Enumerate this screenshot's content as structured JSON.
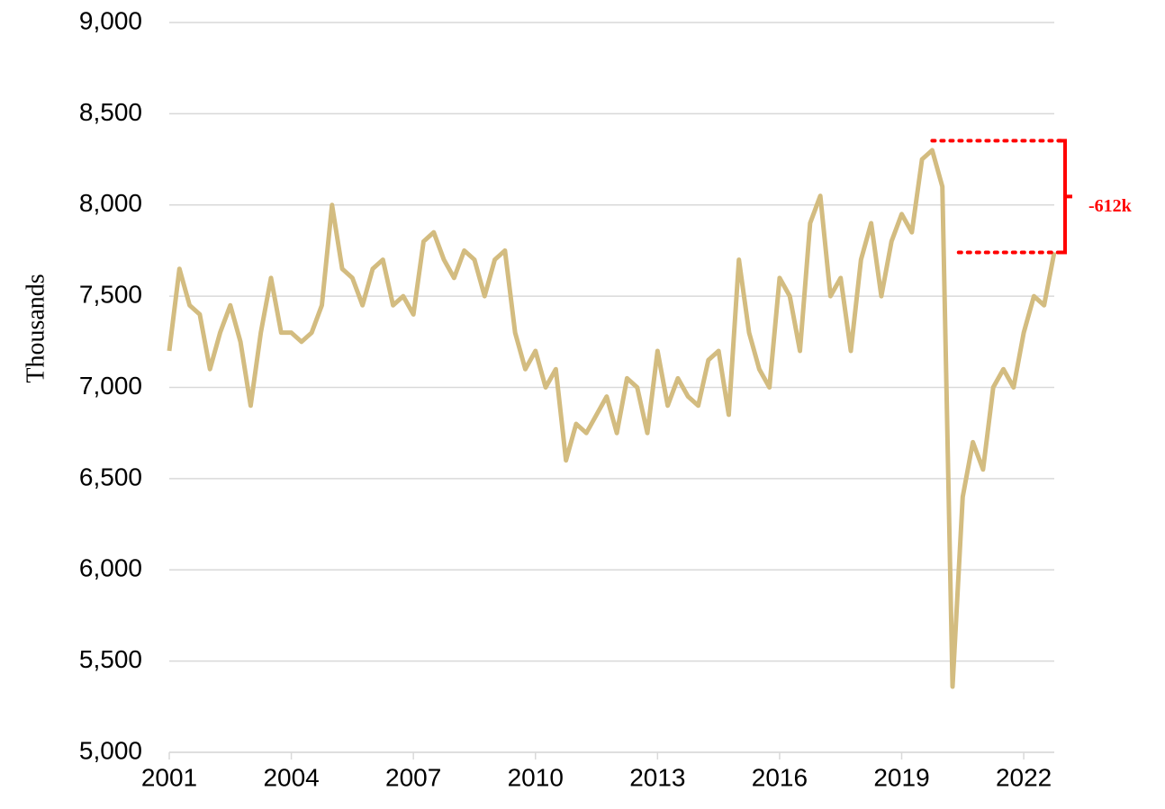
{
  "chart_data": {
    "type": "line",
    "y_label": "Thousands",
    "x": [
      2001,
      2001.25,
      2001.5,
      2001.75,
      2002,
      2002.25,
      2002.5,
      2002.75,
      2003,
      2003.25,
      2003.5,
      2003.75,
      2004,
      2004.25,
      2004.5,
      2004.75,
      2005,
      2005.25,
      2005.5,
      2005.75,
      2006,
      2006.25,
      2006.5,
      2006.75,
      2007,
      2007.25,
      2007.5,
      2007.75,
      2008,
      2008.25,
      2008.5,
      2008.75,
      2009,
      2009.25,
      2009.5,
      2009.75,
      2010,
      2010.25,
      2010.5,
      2010.75,
      2011,
      2011.25,
      2011.5,
      2011.75,
      2012,
      2012.25,
      2012.5,
      2012.75,
      2013,
      2013.25,
      2013.5,
      2013.75,
      2014,
      2014.25,
      2014.5,
      2014.75,
      2015,
      2015.25,
      2015.5,
      2015.75,
      2016,
      2016.25,
      2016.5,
      2016.75,
      2017,
      2017.25,
      2017.5,
      2017.75,
      2018,
      2018.25,
      2018.5,
      2018.75,
      2019,
      2019.25,
      2019.5,
      2019.75,
      2020,
      2020.25,
      2020.5,
      2020.75,
      2021,
      2021.25,
      2021.5,
      2021.75,
      2022,
      2022.25,
      2022.5,
      2022.75
    ],
    "series": [
      {
        "color": "#d3bc80",
        "values": [
          7200,
          7650,
          7450,
          7400,
          7100,
          7300,
          7450,
          7250,
          6900,
          7300,
          7600,
          7300,
          7300,
          7250,
          7300,
          7450,
          8000,
          7650,
          7600,
          7450,
          7650,
          7700,
          7450,
          7500,
          7400,
          7800,
          7850,
          7700,
          7600,
          7750,
          7700,
          7500,
          7700,
          7750,
          7300,
          7100,
          7200,
          7000,
          7100,
          6600,
          6800,
          6750,
          6850,
          6950,
          6750,
          7050,
          7000,
          6750,
          7200,
          6900,
          7050,
          6950,
          6900,
          7150,
          7200,
          6850,
          7700,
          7300,
          7100,
          7000,
          7600,
          7500,
          7200,
          7900,
          8050,
          7500,
          7600,
          7200,
          7700,
          7900,
          7500,
          7800,
          7950,
          7850,
          8250,
          8300,
          8100,
          5360,
          6400,
          6700,
          6550,
          7000,
          7100,
          7000,
          7300,
          7500,
          7450,
          7740
        ]
      }
    ],
    "xlim": [
      2001,
      2022.75
    ],
    "xticks": [
      2001,
      2004,
      2007,
      2010,
      2013,
      2016,
      2019,
      2022
    ],
    "ylim": [
      5000,
      9000
    ],
    "yticks": [
      {
        "value": 5000,
        "label": "5,000"
      },
      {
        "value": 5500,
        "label": "5,500"
      },
      {
        "value": 6000,
        "label": "6,000"
      },
      {
        "value": 6500,
        "label": "6,500"
      },
      {
        "value": 7000,
        "label": "7,000"
      },
      {
        "value": 7500,
        "label": "7,500"
      },
      {
        "value": 8000,
        "label": "8,000"
      },
      {
        "value": 8500,
        "label": "8,500"
      },
      {
        "value": 9000,
        "label": "9,000"
      }
    ],
    "grid": true,
    "annotation": {
      "text": "-612k",
      "from": 8352,
      "to": 7740,
      "color": "#ff0000"
    }
  }
}
